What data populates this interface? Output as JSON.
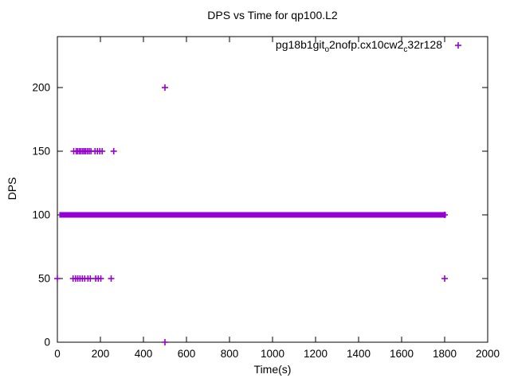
{
  "chart_data": {
    "type": "scatter",
    "title": "DPS vs Time for qp100.L2",
    "xlabel": "Time(s)",
    "ylabel": "DPS",
    "xlim": [
      0,
      2000
    ],
    "ylim": [
      0,
      240
    ],
    "x_ticks": [
      0,
      200,
      400,
      600,
      800,
      1000,
      1200,
      1400,
      1600,
      1800,
      2000
    ],
    "y_ticks": [
      0,
      50,
      100,
      150,
      200
    ],
    "grid": false,
    "legend_position": "top-right-inside",
    "marker_style": "plus",
    "series": [
      {
        "name": "pg18b1git_o2nofp.cx10cw2_c32r128",
        "color": "#9400D3",
        "marker": "plus",
        "points": [
          [
            500,
            200
          ],
          [
            500,
            0
          ],
          [
            0,
            50
          ],
          [
            73,
            50
          ],
          [
            85,
            50
          ],
          [
            95,
            50
          ],
          [
            105,
            50
          ],
          [
            116,
            50
          ],
          [
            127,
            50
          ],
          [
            142,
            50
          ],
          [
            153,
            50
          ],
          [
            178,
            50
          ],
          [
            190,
            50
          ],
          [
            202,
            50
          ],
          [
            250,
            50
          ],
          [
            1800,
            50
          ],
          [
            76,
            150
          ],
          [
            88,
            150
          ],
          [
            95,
            150
          ],
          [
            103,
            150
          ],
          [
            110,
            150
          ],
          [
            118,
            150
          ],
          [
            125,
            150
          ],
          [
            132,
            150
          ],
          [
            140,
            150
          ],
          [
            148,
            150
          ],
          [
            156,
            150
          ],
          [
            175,
            150
          ],
          [
            186,
            150
          ],
          [
            197,
            150
          ],
          [
            208,
            150
          ],
          [
            262,
            150
          ],
          [
            1800,
            100
          ]
        ],
        "dense_run": {
          "y": 100,
          "x_start": 20,
          "x_end": 1795,
          "note": "continuous run of overlapping plus markers at DPS=100 forming a thick band"
        }
      }
    ]
  },
  "legend": {
    "label": "pg18b1git_o2nofp.cx10cw2_c32r128",
    "parts": [
      {
        "text": "pg18b1git",
        "sub": false
      },
      {
        "text": "o",
        "sub": true
      },
      {
        "text": "2nofp.cx10cw2",
        "sub": false
      },
      {
        "text": "c",
        "sub": true
      },
      {
        "text": "32r128",
        "sub": false
      }
    ],
    "marker": "plus-icon"
  },
  "colors": {
    "series": "#9400D3",
    "text": "#000000",
    "border": "#000000",
    "background": "#ffffff"
  }
}
